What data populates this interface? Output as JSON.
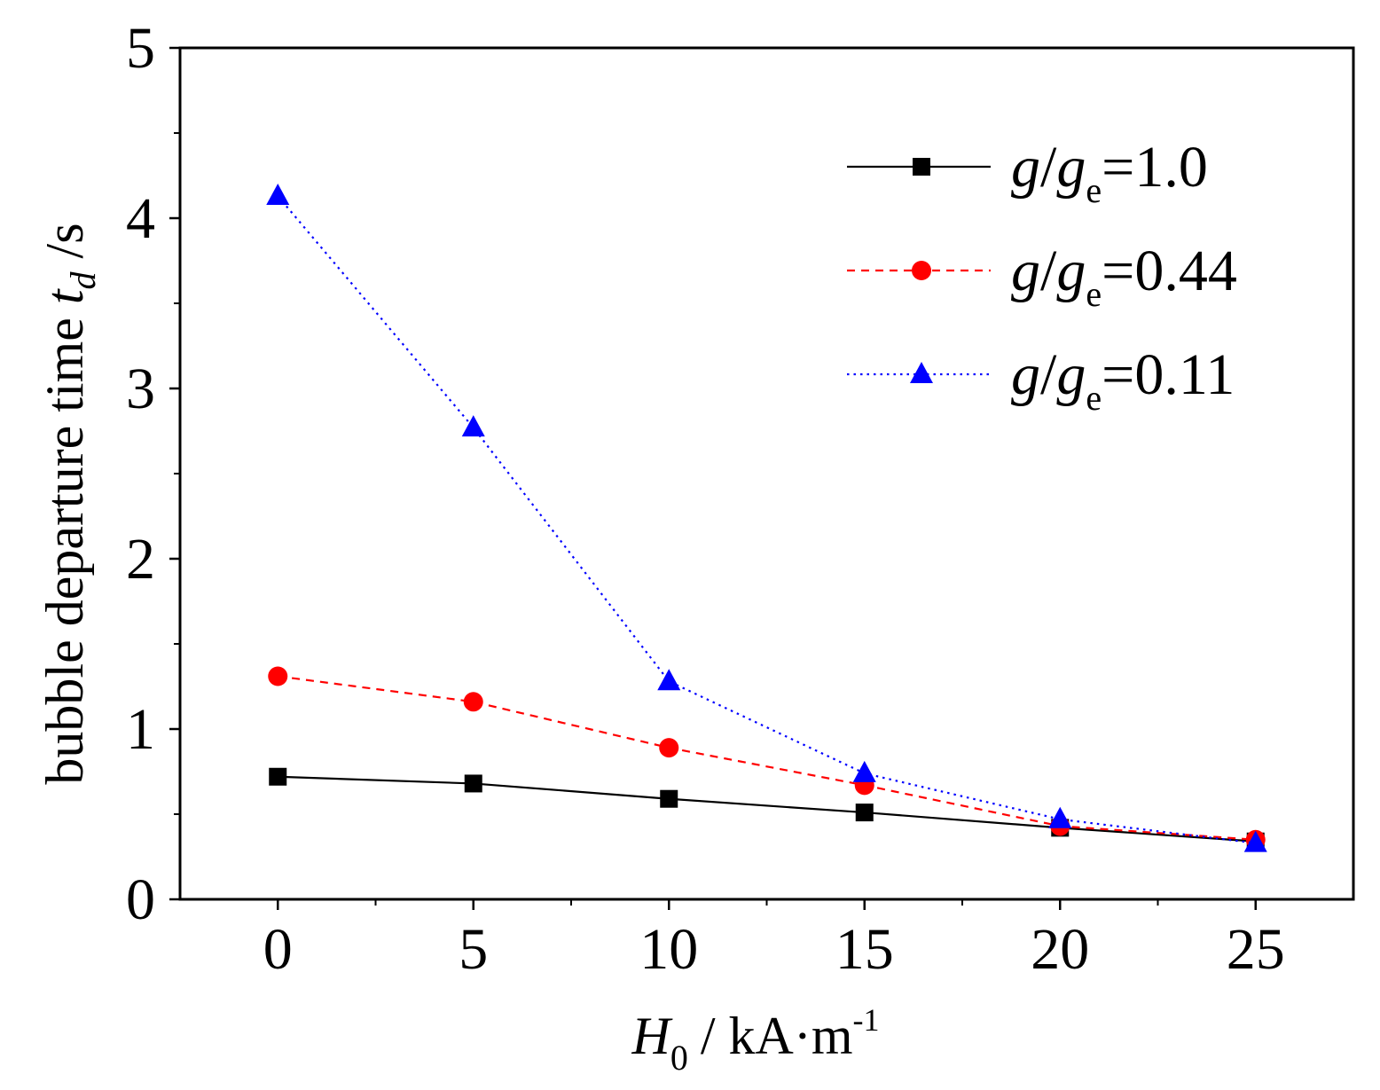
{
  "chart_data": {
    "type": "line",
    "title": "",
    "xlabel": {
      "symbol": "H",
      "subscript": "0",
      "unit": "/ kA·m",
      "unit_superscript": "-1"
    },
    "ylabel": {
      "text": "bubble departure time ",
      "symbol": "t",
      "subscript": "d",
      "unit": " /s"
    },
    "xlim": [
      -2.5,
      27.5
    ],
    "ylim": [
      0,
      5
    ],
    "x": [
      0,
      5,
      10,
      15,
      20,
      25
    ],
    "x_ticks": [
      "0",
      "5",
      "10",
      "15",
      "20",
      "25"
    ],
    "y_ticks": [
      "0",
      "1",
      "2",
      "3",
      "4",
      "5"
    ],
    "legend_position": "top-right",
    "series": [
      {
        "name": "g/ge=1.0",
        "label": {
          "g": "g",
          "slash": "/",
          "g2": "g",
          "sub": "e",
          "rest": "=1.0"
        },
        "color": "#000000",
        "marker": "square",
        "line": "solid",
        "values": [
          0.72,
          0.68,
          0.59,
          0.51,
          0.42,
          0.34
        ]
      },
      {
        "name": "g/ge=0.44",
        "label": {
          "g": "g",
          "slash": "/",
          "g2": "g",
          "sub": "e",
          "rest": "=0.44"
        },
        "color": "#ff0000",
        "marker": "circle",
        "line": "dashed",
        "values": [
          1.31,
          1.16,
          0.89,
          0.67,
          0.43,
          0.35
        ]
      },
      {
        "name": "g/ge=0.11",
        "label": {
          "g": "g",
          "slash": "/",
          "g2": "g",
          "sub": "e",
          "rest": "=0.11"
        },
        "color": "#0000ff",
        "marker": "triangle",
        "line": "dotted",
        "values": [
          4.13,
          2.77,
          1.28,
          0.74,
          0.47,
          0.33
        ]
      }
    ]
  }
}
